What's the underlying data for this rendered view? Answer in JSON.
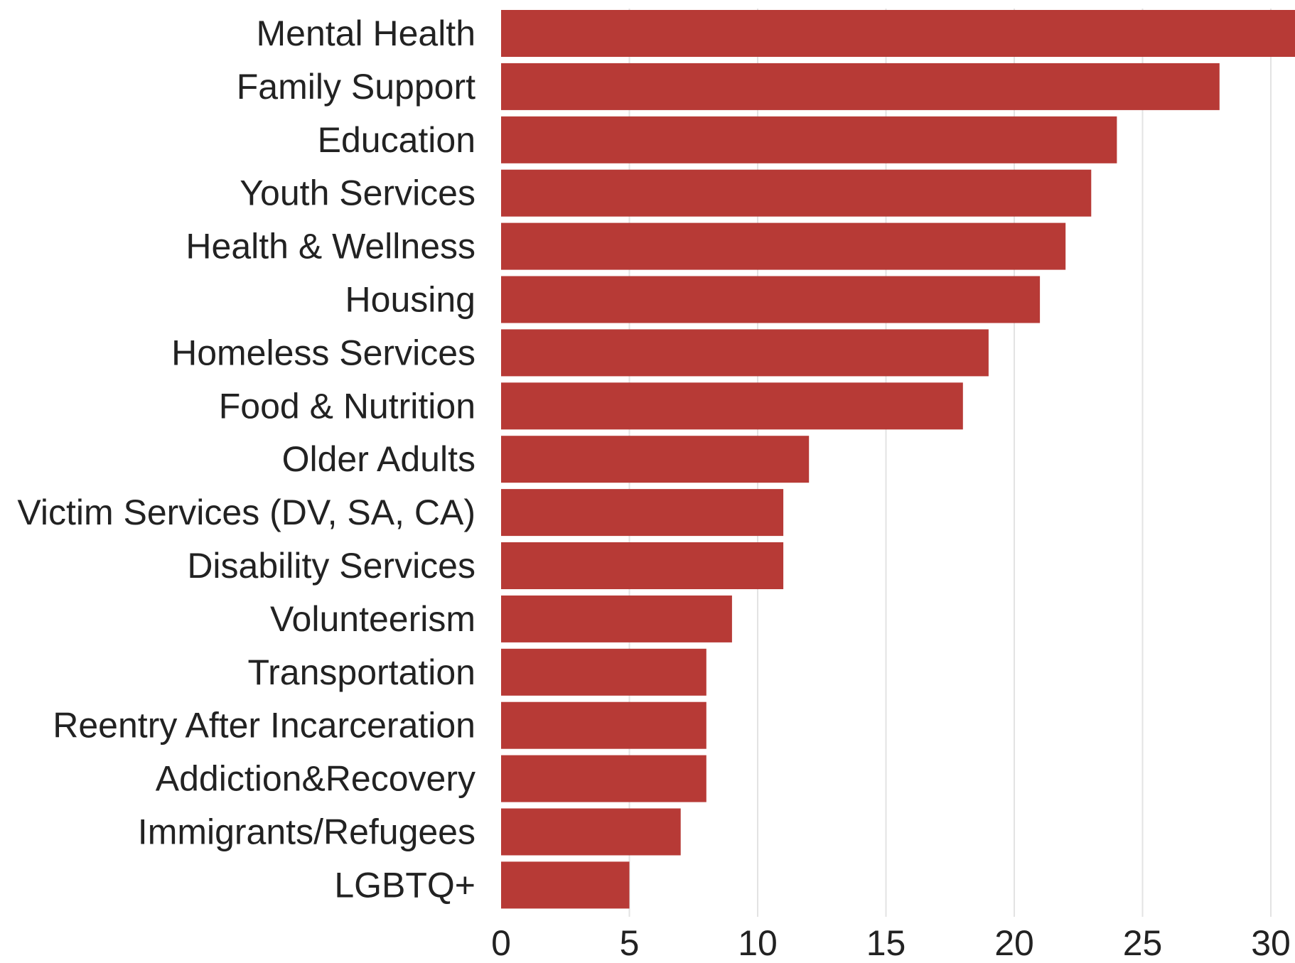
{
  "chart_data": {
    "type": "bar",
    "orientation": "horizontal",
    "categories": [
      "Mental Health",
      "Family Support",
      "Education",
      "Youth Services",
      "Health & Wellness",
      "Housing",
      "Homeless Services",
      "Food & Nutrition",
      "Older Adults",
      "Victim Services (DV, SA, CA)",
      "Disability Services",
      "Volunteerism",
      "Transportation",
      "Reentry After Incarceration",
      "Addiction&Recovery",
      "Immigrants/Refugees",
      "LGBTQ+"
    ],
    "values": [
      31,
      28,
      24,
      23,
      22,
      21,
      19,
      18,
      12,
      11,
      11,
      9,
      8,
      8,
      8,
      7,
      5
    ],
    "xticks": [
      0,
      5,
      10,
      15,
      20,
      25,
      30
    ],
    "xlim": [
      0,
      31
    ],
    "title": "",
    "xlabel": "",
    "ylabel": "",
    "grid": "vertical",
    "bar_color": "#b73a36"
  }
}
